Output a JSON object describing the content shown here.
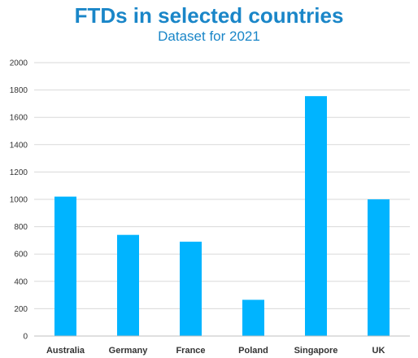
{
  "chart_data": {
    "type": "bar",
    "title": "FTDs in selected countries",
    "subtitle": "Dataset for 2021",
    "xlabel": "",
    "ylabel": "",
    "categories": [
      "Australia",
      "Germany",
      "France",
      "Poland",
      "Singapore",
      "UK"
    ],
    "values": [
      1020,
      740,
      690,
      265,
      1755,
      1000
    ],
    "ylim": [
      0,
      2000
    ],
    "yticks": [
      0,
      200,
      400,
      600,
      800,
      1000,
      1200,
      1400,
      1600,
      1800,
      2000
    ],
    "grid": true,
    "legend": "none",
    "colors": {
      "bar": "#00b4ff",
      "title": "#1a86c8",
      "grid": "#d9d9d9",
      "axis": "#bfbfbf",
      "text": "#333333"
    }
  }
}
